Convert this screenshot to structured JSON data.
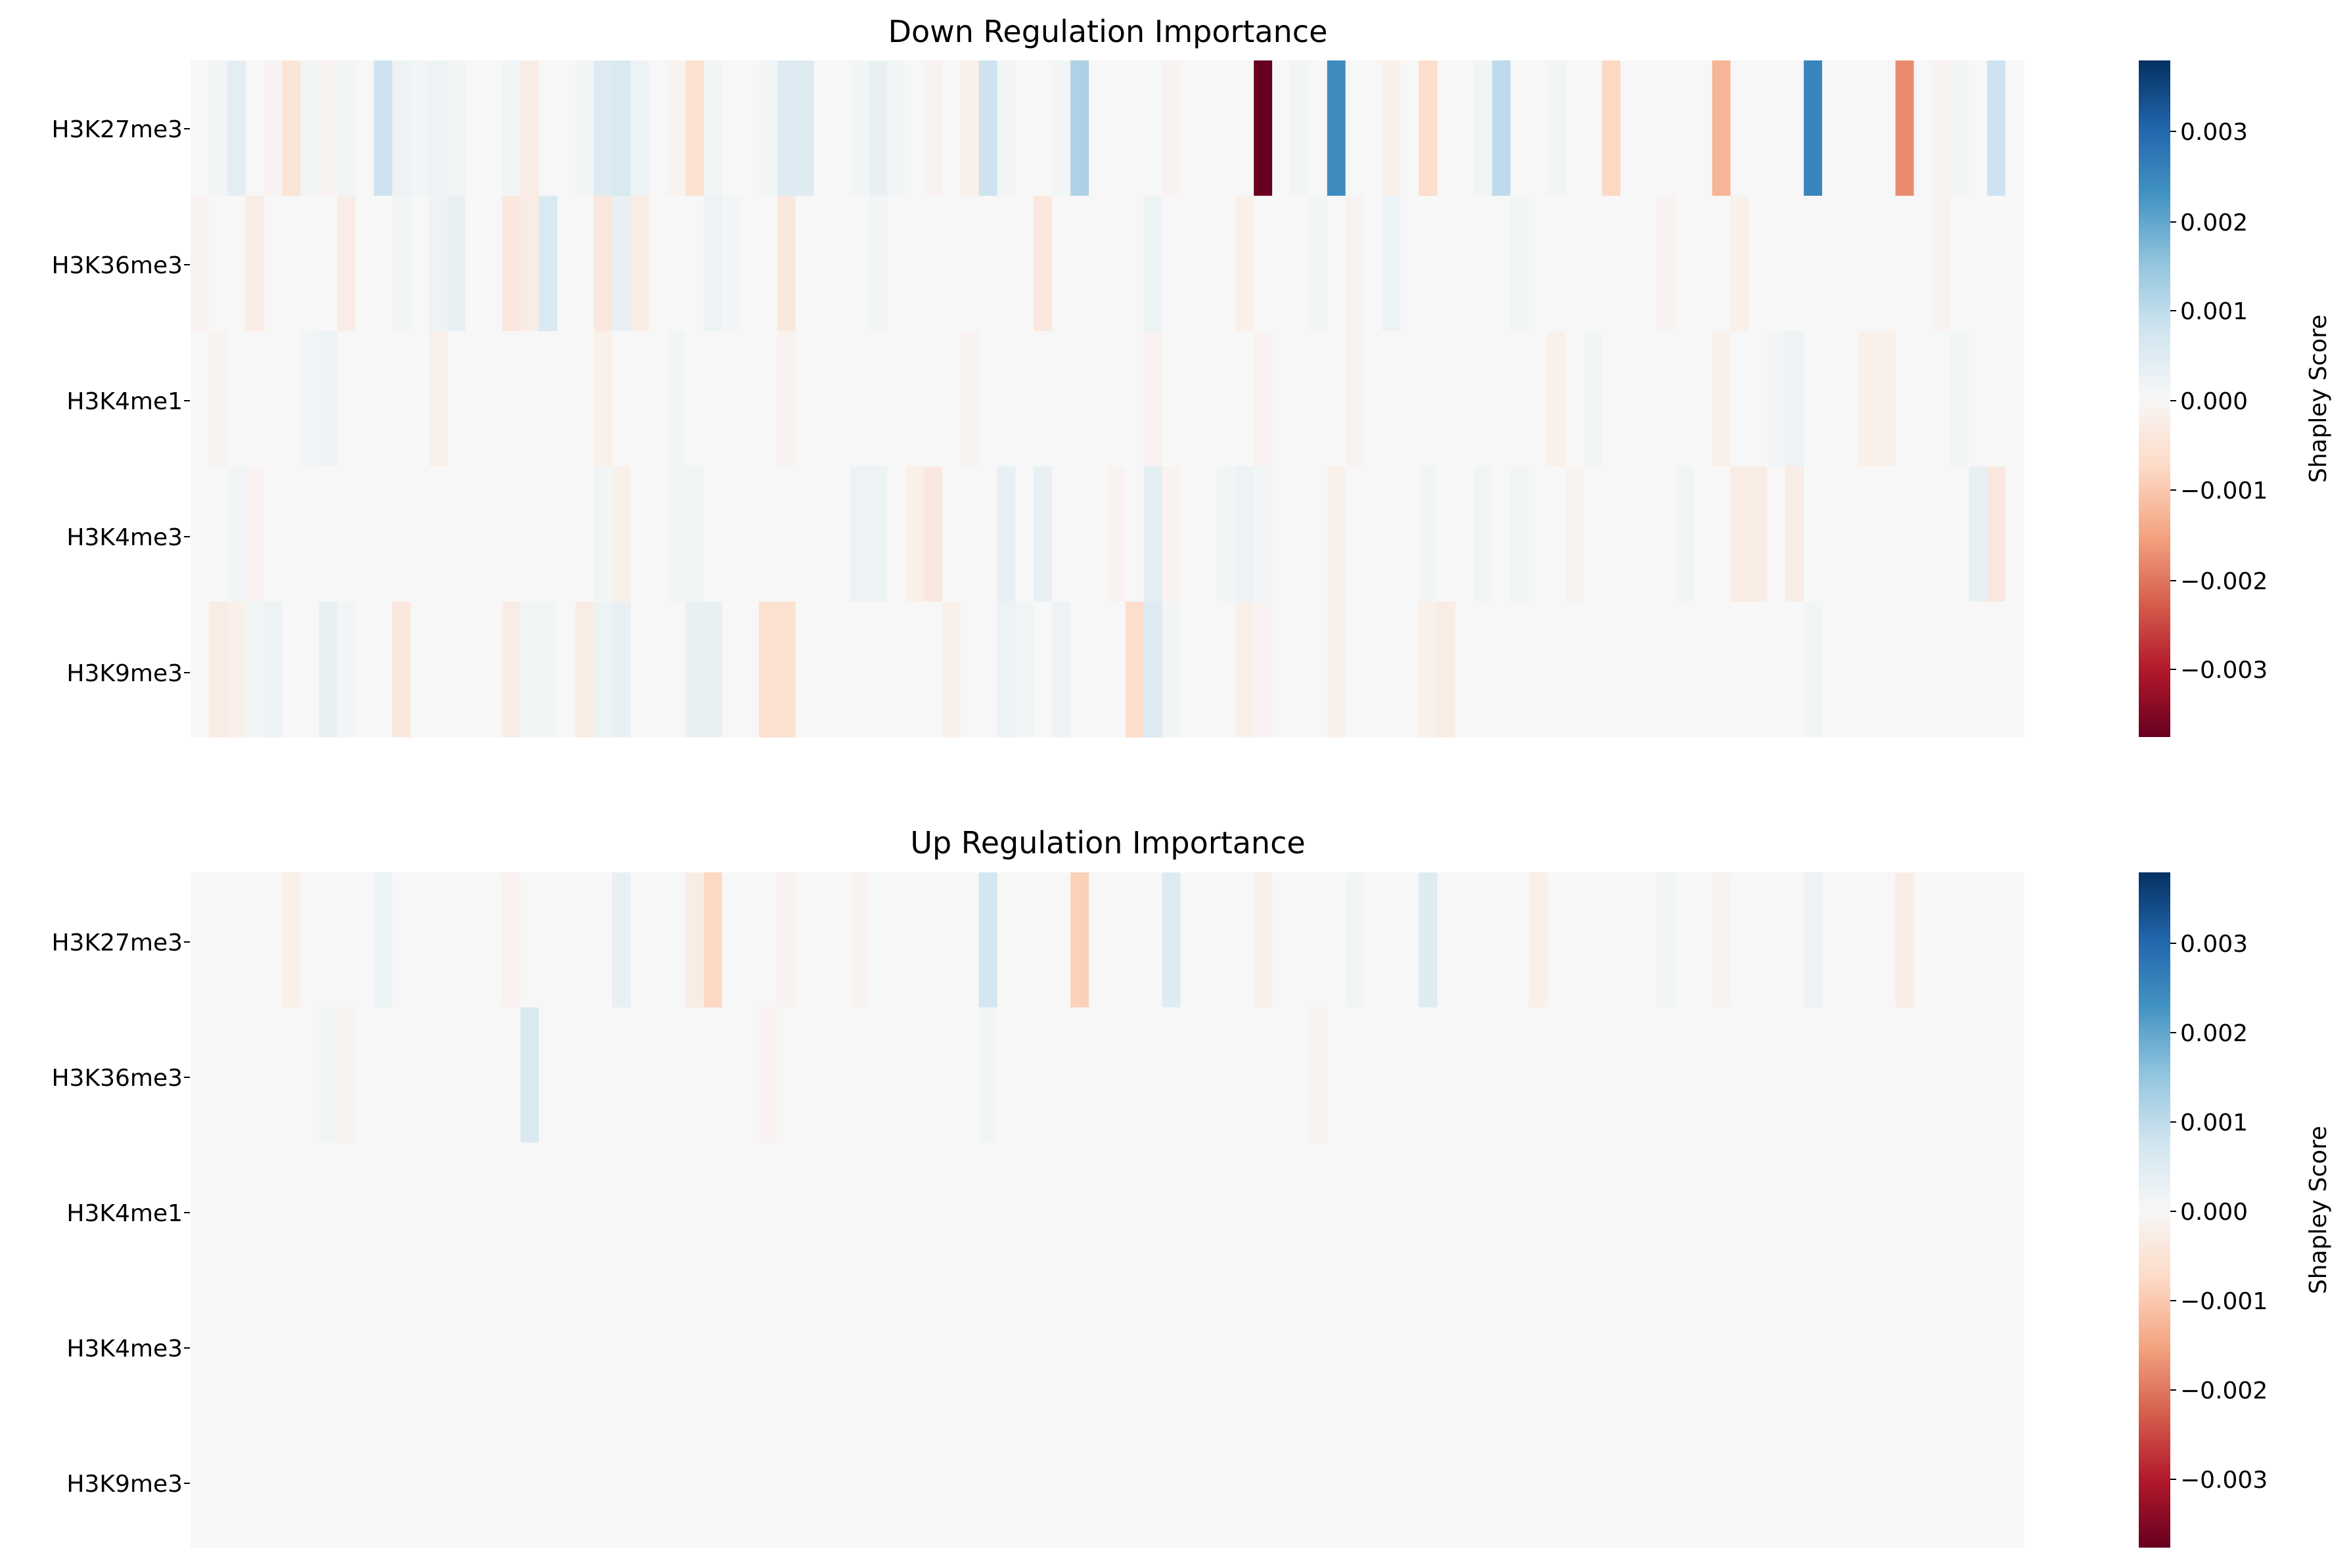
{
  "chart_data": [
    {
      "type": "heatmap",
      "title": "Down Regulation Importance",
      "rows": [
        "H3K27me3",
        "H3K36me3",
        "H3K4me1",
        "H3K4me3",
        "H3K9me3"
      ],
      "num_columns": 100,
      "colormap": "RdBu",
      "vmin": -0.0038,
      "vmax": 0.0038,
      "colorbar": {
        "label": "Shapley Score",
        "ticks": [
          0.003,
          0.002,
          0.001,
          0.0,
          -0.001,
          -0.002,
          -0.003
        ],
        "tick_labels": [
          "0.003",
          "0.002",
          "0.001",
          "0.000",
          "−0.001",
          "−0.002",
          "−0.003"
        ]
      },
      "values": [
        [
          0,
          0.0001,
          0.0004,
          0,
          -0.0001,
          -0.0005,
          0.0001,
          -0.0001,
          0.0001,
          0,
          0.0008,
          0.0002,
          0.0001,
          0.0002,
          0.0001,
          0,
          0,
          0.0001,
          -0.0003,
          0,
          0,
          0.0001,
          0.0005,
          0.0006,
          0.0002,
          0,
          -0.0001,
          -0.0006,
          0.0001,
          0,
          0,
          0.0001,
          0.0005,
          0.0005,
          0,
          0,
          0.0001,
          0.0003,
          0.0001,
          0,
          -0.0001,
          0,
          -0.0002,
          0.0008,
          0.0001,
          0,
          0,
          0.0001,
          0.0012,
          0,
          0,
          0,
          0,
          -0.0001,
          0,
          0,
          0,
          0,
          -0.0038,
          0,
          0.0001,
          0,
          0.0024,
          0,
          0,
          -0.0002,
          0,
          -0.0007,
          0,
          0,
          0.0001,
          0.001,
          0,
          0,
          0.0001,
          0,
          0,
          -0.0008,
          0,
          0,
          0,
          0,
          0,
          -0.0013,
          0,
          0,
          0,
          0,
          0.0025,
          0,
          0,
          0,
          0,
          -0.0018,
          0,
          -0.0001,
          0.0001,
          0,
          0.0008,
          0
        ],
        [
          -0.0001,
          0,
          0,
          -0.0003,
          0,
          0,
          0,
          0,
          -0.0003,
          0,
          0,
          0.0001,
          0,
          0.0002,
          0.0003,
          0,
          0,
          -0.0004,
          -0.0003,
          0.0006,
          0,
          0,
          -0.0004,
          0.0003,
          -0.0003,
          0,
          0,
          0,
          0.0002,
          0.0001,
          0,
          0,
          -0.0004,
          0,
          0,
          0,
          0,
          0.0001,
          0,
          0,
          0,
          0,
          0,
          0,
          0,
          0,
          -0.0004,
          0,
          0,
          0,
          0,
          0,
          0.0002,
          0,
          0,
          0,
          0,
          -0.0002,
          0,
          0,
          0,
          0.0001,
          0,
          -0.0001,
          0,
          0.0002,
          0,
          0,
          0,
          0,
          0,
          0,
          0.0001,
          0,
          0,
          0,
          0,
          0,
          0,
          0,
          -0.0001,
          0,
          0,
          0,
          -0.0002,
          0,
          0,
          0,
          0,
          0,
          0,
          0,
          0,
          0,
          0,
          -0.0001,
          0,
          0,
          0,
          0
        ],
        [
          0,
          -0.0001,
          0,
          0,
          0,
          0,
          0.0001,
          0.0002,
          0,
          0,
          0,
          0,
          0,
          -0.0002,
          0,
          0,
          0,
          0,
          0,
          0,
          0,
          0,
          -0.0002,
          0,
          0,
          0,
          0.0001,
          0,
          0,
          0,
          0,
          0,
          -0.0001,
          0,
          0,
          0,
          0,
          0,
          0,
          0,
          0,
          0,
          -0.0001,
          0,
          0,
          0,
          0,
          0,
          0,
          0,
          0,
          0,
          -0.0001,
          0,
          0,
          0,
          0,
          0,
          -0.0001,
          0,
          0,
          0,
          0,
          -0.0001,
          0,
          0,
          0,
          0,
          0,
          0,
          0,
          0,
          0,
          0,
          -0.0002,
          0,
          0.0001,
          0,
          0,
          0,
          0,
          0,
          0,
          -0.0002,
          0,
          0,
          0.0001,
          0.0002,
          0,
          0,
          0,
          -0.0002,
          -0.0002,
          0,
          0,
          0,
          0.0001,
          0,
          0,
          0
        ],
        [
          0,
          0,
          0.0001,
          -0.0001,
          0,
          0,
          0,
          0,
          0,
          0,
          0,
          0,
          0,
          0,
          0,
          0,
          0,
          0,
          0,
          0,
          0,
          0,
          0.0001,
          -0.0002,
          0,
          0,
          0.0001,
          0.0001,
          0,
          0,
          0,
          0,
          0,
          0,
          0,
          0,
          0.0002,
          0.0002,
          0,
          -0.0002,
          -0.0004,
          0,
          0,
          0,
          0.0003,
          0,
          0.0003,
          0,
          0,
          0,
          -0.0001,
          0,
          0.0004,
          -0.0001,
          0,
          0,
          0.0001,
          0.0002,
          0.0001,
          0,
          0,
          0,
          -0.0002,
          0,
          0,
          0,
          0,
          0.0001,
          0,
          0,
          0.0001,
          0,
          0.0001,
          0,
          0,
          -0.0001,
          0,
          0,
          0,
          0,
          0,
          0.0001,
          0,
          0,
          -0.0003,
          -0.0003,
          0,
          -0.0003,
          0,
          0,
          0,
          0,
          0,
          0,
          0,
          0,
          0,
          0.0003,
          -0.0004,
          0
        ],
        [
          0,
          -0.0003,
          -0.0002,
          0.0001,
          0.0002,
          0,
          0,
          0.0003,
          0.0001,
          0,
          0,
          -0.0004,
          0,
          0,
          0,
          0,
          0,
          -0.0003,
          0.0001,
          0.0001,
          0,
          -0.0003,
          0.0002,
          0.0003,
          0,
          0,
          0,
          0.0003,
          0.0003,
          0,
          0,
          -0.0006,
          -0.0006,
          0,
          0,
          0,
          0,
          0,
          0,
          0,
          0,
          -0.0002,
          0,
          0,
          0.0002,
          0.0001,
          0,
          0.0002,
          0,
          0,
          0,
          -0.0007,
          0.0005,
          0.0001,
          0,
          0,
          0,
          -0.0002,
          -0.0001,
          0,
          0,
          0,
          -0.0002,
          0,
          0,
          0,
          0,
          -0.0002,
          -0.0003,
          0,
          0,
          0,
          0,
          0,
          0,
          0,
          0,
          0,
          0,
          0,
          0,
          0,
          0,
          0,
          0,
          0,
          0,
          0,
          0.0001,
          0,
          0,
          0,
          0,
          0,
          0,
          0,
          0,
          0,
          0,
          0
        ]
      ]
    },
    {
      "type": "heatmap",
      "title": "Up Regulation Importance",
      "rows": [
        "H3K27me3",
        "H3K36me3",
        "H3K4me1",
        "H3K4me3",
        "H3K9me3"
      ],
      "num_columns": 100,
      "colormap": "RdBu",
      "vmin": -0.0038,
      "vmax": 0.0038,
      "colorbar": {
        "label": "Shapley Score",
        "ticks": [
          0.003,
          0.002,
          0.001,
          0.0,
          -0.001,
          -0.002,
          -0.003
        ],
        "tick_labels": [
          "0.003",
          "0.002",
          "0.001",
          "0.000",
          "−0.001",
          "−0.002",
          "−0.003"
        ]
      },
      "values": [
        [
          0,
          0,
          0,
          0,
          0,
          -0.0002,
          0,
          0,
          0,
          0,
          0.0002,
          0,
          0,
          0,
          0,
          0,
          0,
          -0.0001,
          0,
          0,
          0,
          0,
          0,
          0.0003,
          0,
          0,
          0,
          -0.0003,
          -0.0008,
          0,
          0,
          0,
          -0.0001,
          0,
          0,
          0,
          -0.0001,
          0,
          0,
          0,
          0,
          0,
          0,
          0.0007,
          0,
          0,
          0,
          0,
          -0.0009,
          0,
          0,
          0,
          0,
          0.0005,
          0,
          0,
          0,
          0,
          -0.0002,
          0,
          0,
          0,
          0,
          0.0001,
          0,
          0,
          0,
          0.0005,
          0,
          0,
          0,
          0,
          0,
          -0.0002,
          0,
          0,
          0,
          0,
          0,
          0,
          0.0001,
          0,
          0,
          -0.0001,
          0,
          0,
          0,
          0,
          0.0002,
          0,
          0,
          0,
          0,
          -0.0003,
          0,
          0,
          0,
          0,
          0,
          0
        ],
        [
          0,
          0,
          0,
          0,
          0,
          0,
          0,
          0.0001,
          -0.0001,
          0,
          0,
          0,
          0,
          0,
          0,
          0,
          0,
          0,
          0.0006,
          0,
          0,
          0,
          0,
          0,
          0,
          0,
          0,
          0,
          0,
          0,
          0,
          -0.0001,
          0,
          0,
          0,
          0,
          0,
          0,
          0,
          0,
          0,
          0,
          0,
          0.0001,
          0,
          0,
          0,
          0,
          0,
          0,
          0,
          0,
          0,
          0,
          0,
          0,
          0,
          0,
          0,
          0,
          0,
          -0.0001,
          0,
          0,
          0,
          0,
          0,
          0,
          0,
          0,
          0,
          0,
          0,
          0,
          0,
          0,
          0,
          0,
          0,
          0,
          0,
          0,
          0,
          0,
          0,
          0,
          0,
          0,
          0,
          0,
          0,
          0,
          0,
          0,
          0,
          0,
          0,
          0,
          0,
          0
        ],
        [
          0,
          0,
          0,
          0,
          0,
          0,
          0,
          0,
          0,
          0,
          0,
          0,
          0,
          0,
          0,
          0,
          0,
          0,
          0,
          0,
          0,
          0,
          0,
          0,
          0,
          0,
          0,
          0,
          0,
          0,
          0,
          0,
          0,
          0,
          0,
          0,
          0,
          0,
          0,
          0,
          0,
          0,
          0,
          0,
          0,
          0,
          0,
          0,
          0,
          0,
          0,
          0,
          0,
          0,
          0,
          0,
          0,
          0,
          0,
          0,
          0,
          0,
          0,
          0,
          0,
          0,
          0,
          0,
          0,
          0,
          0,
          0,
          0,
          0,
          0,
          0,
          0,
          0,
          0,
          0,
          0,
          0,
          0,
          0,
          0,
          0,
          0,
          0,
          0,
          0,
          0,
          0,
          0,
          0,
          0,
          0,
          0,
          0,
          0,
          0
        ],
        [
          0,
          0,
          0,
          0,
          0,
          0,
          0,
          0,
          0,
          0,
          0,
          0,
          0,
          0,
          0,
          0,
          0,
          0,
          0,
          0,
          0,
          0,
          0,
          0,
          0,
          0,
          0,
          0,
          0,
          0,
          0,
          0,
          0,
          0,
          0,
          0,
          0,
          0,
          0,
          0,
          0,
          0,
          0,
          0,
          0,
          0,
          0,
          0,
          0,
          0,
          0,
          0,
          0,
          0,
          0,
          0,
          0,
          0,
          0,
          0,
          0,
          0,
          0,
          0,
          0,
          0,
          0,
          0,
          0,
          0,
          0,
          0,
          0,
          0,
          0,
          0,
          0,
          0,
          0,
          0,
          0,
          0,
          0,
          0,
          0,
          0,
          0,
          0,
          0,
          0,
          0,
          0,
          0,
          0,
          0,
          0,
          0,
          0,
          0,
          0
        ],
        [
          0,
          0,
          0,
          0,
          0,
          0,
          0,
          0,
          0,
          0,
          0,
          0,
          0,
          0,
          0,
          0,
          0,
          0,
          0,
          0,
          0,
          0,
          0,
          0,
          0,
          0,
          0,
          0,
          0,
          0,
          0,
          0,
          0,
          0,
          0,
          0,
          0,
          0,
          0,
          0,
          0,
          0,
          0,
          0,
          0,
          0,
          0,
          0,
          0,
          0,
          0,
          0,
          0,
          0,
          0,
          0,
          0,
          0,
          0,
          0,
          0,
          0,
          0,
          0,
          0,
          0,
          0,
          0,
          0,
          0,
          0,
          0,
          0,
          0,
          0,
          0,
          0,
          0,
          0,
          0,
          0,
          0,
          0,
          0,
          0,
          0,
          0,
          0,
          0,
          0,
          0,
          0,
          0,
          0,
          0,
          0,
          0,
          0,
          0,
          0
        ]
      ]
    }
  ]
}
